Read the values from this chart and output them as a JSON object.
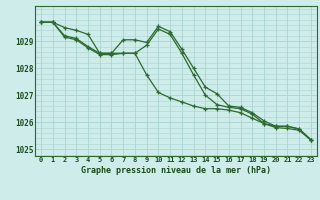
{
  "hours": [
    0,
    1,
    2,
    3,
    4,
    5,
    6,
    7,
    8,
    9,
    10,
    11,
    12,
    13,
    14,
    15,
    16,
    17,
    18,
    19,
    20,
    21,
    22,
    23
  ],
  "line1": [
    1029.7,
    1029.7,
    1029.2,
    1029.1,
    1028.8,
    1028.55,
    1028.55,
    1029.05,
    1029.05,
    1028.95,
    1029.55,
    1029.35,
    1028.7,
    1028.0,
    1027.3,
    1027.05,
    1026.6,
    1026.55,
    1026.35,
    1026.05,
    1025.85,
    1025.85,
    1025.75,
    1025.35
  ],
  "line2": [
    1029.7,
    1029.7,
    1029.15,
    1029.05,
    1028.75,
    1028.5,
    1028.5,
    1028.55,
    1028.55,
    1027.75,
    1027.1,
    1026.9,
    1026.75,
    1026.6,
    1026.5,
    1026.5,
    1026.45,
    1026.35,
    1026.15,
    1025.95,
    1025.8,
    1025.77,
    1025.7,
    1025.33
  ],
  "line3": [
    1029.7,
    1029.7,
    1029.5,
    1029.4,
    1029.25,
    1028.55,
    1028.55,
    1028.55,
    1028.55,
    1028.85,
    1029.45,
    1029.25,
    1028.55,
    1027.75,
    1027.0,
    1026.65,
    1026.55,
    1026.5,
    1026.3,
    1025.95,
    1025.85,
    1025.85,
    1025.75,
    1025.35
  ],
  "bg_color": "#ceecea",
  "grid_color": "#aad4d0",
  "line_color": "#2d6a2d",
  "text_color": "#1a4d1a",
  "xlabel": "Graphe pression niveau de la mer (hPa)",
  "ylim_min": 1024.75,
  "ylim_max": 1030.3,
  "yticks": [
    1025,
    1026,
    1027,
    1028,
    1029
  ],
  "xticks": [
    0,
    1,
    2,
    3,
    4,
    5,
    6,
    7,
    8,
    9,
    10,
    11,
    12,
    13,
    14,
    15,
    16,
    17,
    18,
    19,
    20,
    21,
    22,
    23
  ]
}
